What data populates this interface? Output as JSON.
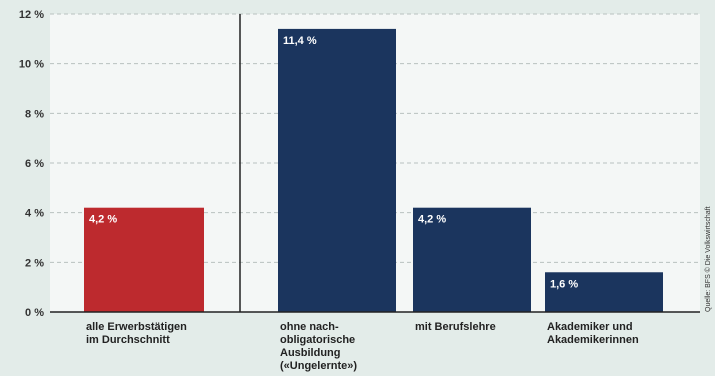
{
  "chart_data": {
    "type": "bar",
    "categories": [
      [
        "alle Erwerbstätigen",
        "im Durchschnitt"
      ],
      [
        "ohne nach-",
        "obligatorische",
        "Ausbildung",
        "(«Ungelernte»)"
      ],
      [
        "mit Berufslehre"
      ],
      [
        "Akademiker und",
        "Akademikerinnen"
      ]
    ],
    "values": [
      4.2,
      11.4,
      4.2,
      1.6
    ],
    "value_labels": [
      "4,2 %",
      "11,4 %",
      "4,2 %",
      "1,6 %"
    ],
    "colors": [
      "#bd2a2e",
      "#1b355e",
      "#1b355e",
      "#1b355e"
    ],
    "ylim": [
      0,
      12
    ],
    "yticks": [
      0,
      2,
      4,
      6,
      8,
      10,
      12
    ],
    "ytick_labels": [
      "0 %",
      "2 %",
      "4 %",
      "6 %",
      "8 %",
      "10 %",
      "12 %"
    ],
    "grid": true,
    "source": "Quelle: BFS  © Die Volkswirtschaft"
  },
  "colors": {
    "page_background": "#e3ece9",
    "plot_background": "#f4f7f6",
    "grid": "#b9c2c0",
    "axis": "#222222"
  }
}
